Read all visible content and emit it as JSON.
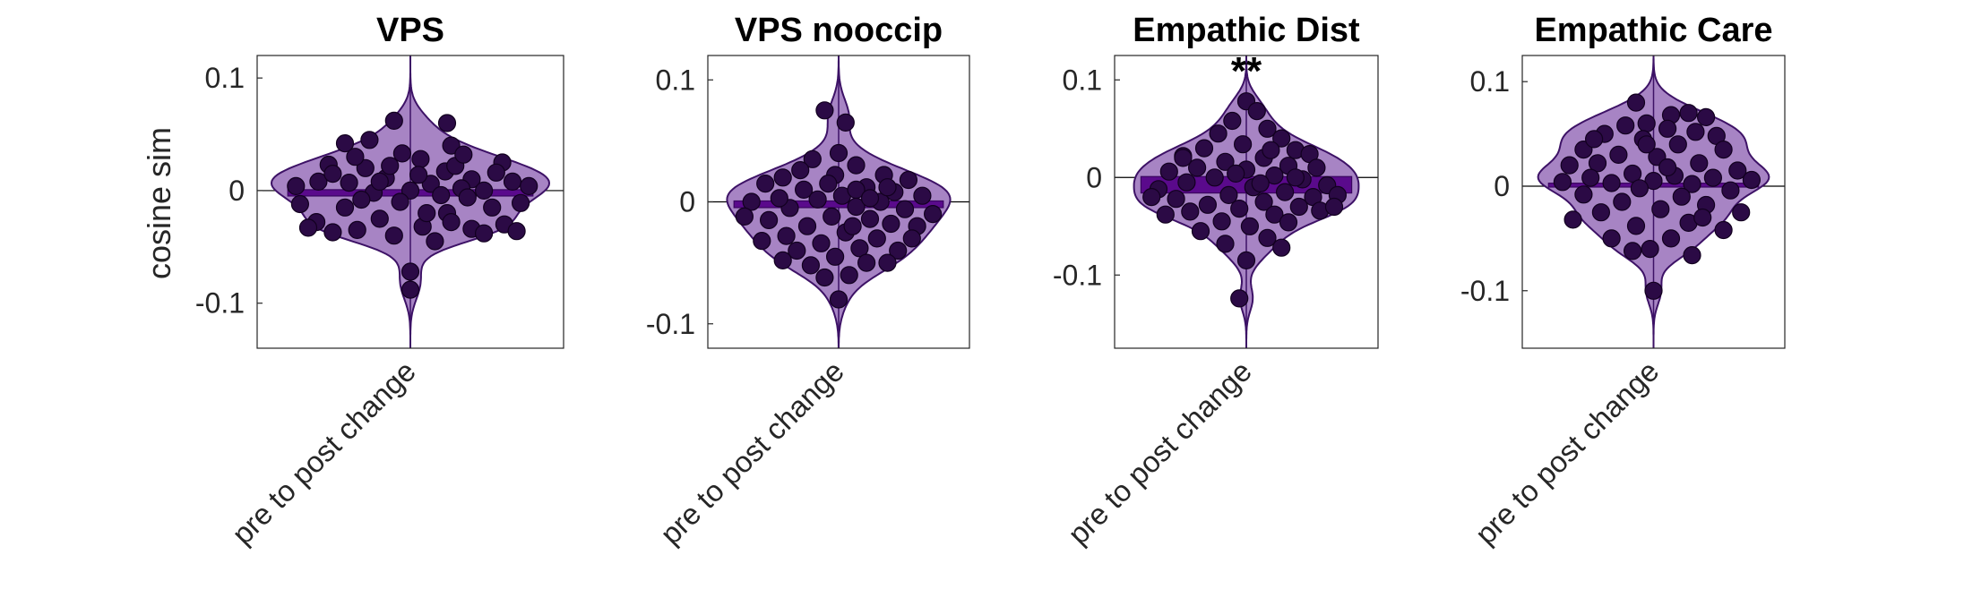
{
  "chart_data": {
    "type": "violin",
    "ylabel": "cosine sim",
    "category": "pre to post change",
    "colors": {
      "violin_fill": "#a784c4",
      "violin_edge": "#3d1266",
      "bar": "#5a0a8c",
      "points": "#2b0a45",
      "zero_line": "#000000"
    },
    "panels": [
      {
        "title": "VPS",
        "annotation": "",
        "ylim": [
          -0.14,
          0.12
        ],
        "yticks": [
          0.1,
          0,
          -0.1
        ],
        "ytick_labels": [
          "0.1",
          "0",
          "-0.1"
        ],
        "mean": -0.004,
        "points": [
          [
            -0.012,
            0.011
          ],
          [
            0.017,
            0.017
          ],
          [
            0.03,
            0.01
          ],
          [
            -0.022,
            0.02
          ],
          [
            -0.01,
            0.022
          ],
          [
            0.005,
            0.028
          ],
          [
            0.045,
            0.025
          ],
          [
            -0.04,
            0.023
          ],
          [
            -0.027,
            0.03
          ],
          [
            0.022,
            0.022
          ],
          [
            0.01,
            0.006
          ],
          [
            -0.03,
            0.007
          ],
          [
            0.036,
            0.0
          ],
          [
            -0.018,
            -0.002
          ],
          [
            0.0,
            0.0
          ],
          [
            0.025,
            0.002
          ],
          [
            -0.045,
            0.008
          ],
          [
            0.05,
            0.008
          ],
          [
            0.015,
            -0.004
          ],
          [
            -0.005,
            -0.01
          ],
          [
            0.018,
            -0.02
          ],
          [
            -0.032,
            -0.015
          ],
          [
            0.04,
            -0.015
          ],
          [
            -0.015,
            -0.025
          ],
          [
            0.006,
            -0.032
          ],
          [
            -0.026,
            -0.035
          ],
          [
            0.03,
            -0.034
          ],
          [
            -0.008,
            -0.04
          ],
          [
            0.012,
            -0.045
          ],
          [
            0.046,
            -0.03
          ],
          [
            -0.046,
            -0.028
          ],
          [
            -0.038,
            -0.037
          ],
          [
            0.036,
            -0.038
          ],
          [
            -0.02,
            0.045
          ],
          [
            0.02,
            0.04
          ],
          [
            -0.008,
            0.062
          ],
          [
            0.018,
            0.06
          ],
          [
            -0.032,
            0.042
          ],
          [
            0.0,
            -0.072
          ],
          [
            0.0,
            -0.088
          ],
          [
            -0.054,
            -0.012
          ],
          [
            0.054,
            -0.011
          ],
          [
            0.026,
            0.032
          ],
          [
            -0.004,
            0.033
          ],
          [
            -0.015,
            0.008
          ],
          [
            0.042,
            0.016
          ],
          [
            -0.038,
            0.015
          ],
          [
            0.008,
            -0.02
          ],
          [
            -0.024,
            -0.008
          ],
          [
            0.028,
            -0.006
          ],
          [
            0.058,
            0.004
          ],
          [
            -0.056,
            0.004
          ],
          [
            0.004,
            0.014
          ],
          [
            -0.05,
            -0.033
          ],
          [
            0.052,
            -0.036
          ],
          [
            0.02,
            -0.028
          ]
        ]
      },
      {
        "title": "VPS nooccip",
        "annotation": "",
        "ylim": [
          -0.12,
          0.12
        ],
        "yticks": [
          0.1,
          0,
          -0.1
        ],
        "ytick_labels": [
          "0.1",
          "0",
          "-0.1"
        ],
        "mean": -0.004,
        "points": [
          [
            -0.008,
            0.075
          ],
          [
            0.004,
            0.065
          ],
          [
            -0.015,
            0.035
          ],
          [
            0.01,
            0.03
          ],
          [
            0.026,
            0.022
          ],
          [
            -0.032,
            0.02
          ],
          [
            0.04,
            0.018
          ],
          [
            -0.002,
            0.022
          ],
          [
            0.016,
            0.012
          ],
          [
            -0.02,
            0.01
          ],
          [
            0.032,
            0.008
          ],
          [
            -0.042,
            0.015
          ],
          [
            0.002,
            0.005
          ],
          [
            -0.012,
            0.002
          ],
          [
            0.024,
            0.0
          ],
          [
            0.048,
            0.005
          ],
          [
            -0.05,
            0.0
          ],
          [
            0.01,
            -0.004
          ],
          [
            -0.028,
            -0.005
          ],
          [
            0.038,
            -0.006
          ],
          [
            -0.004,
            -0.012
          ],
          [
            0.018,
            -0.014
          ],
          [
            -0.04,
            -0.015
          ],
          [
            0.03,
            -0.018
          ],
          [
            -0.018,
            -0.02
          ],
          [
            0.004,
            -0.025
          ],
          [
            0.045,
            -0.02
          ],
          [
            -0.03,
            -0.028
          ],
          [
            0.022,
            -0.03
          ],
          [
            -0.01,
            -0.034
          ],
          [
            0.012,
            -0.038
          ],
          [
            -0.024,
            -0.04
          ],
          [
            0.034,
            -0.04
          ],
          [
            -0.002,
            -0.045
          ],
          [
            0.016,
            -0.05
          ],
          [
            -0.016,
            -0.052
          ],
          [
            0.006,
            -0.06
          ],
          [
            -0.008,
            -0.062
          ],
          [
            0.0,
            -0.08
          ],
          [
            0.01,
            0.01
          ],
          [
            -0.034,
            0.003
          ],
          [
            0.028,
            0.012
          ],
          [
            -0.022,
            0.026
          ],
          [
            0.018,
            0.003
          ],
          [
            0.054,
            -0.01
          ],
          [
            -0.054,
            -0.012
          ],
          [
            0.042,
            -0.03
          ],
          [
            -0.044,
            -0.032
          ],
          [
            0.0,
            0.04
          ],
          [
            0.008,
            -0.02
          ],
          [
            -0.006,
            0.015
          ],
          [
            0.028,
            -0.05
          ],
          [
            -0.032,
            -0.048
          ]
        ]
      },
      {
        "title": "Empathic Dist",
        "annotation": "**",
        "ylim": [
          -0.175,
          0.125
        ],
        "yticks": [
          0.1,
          0,
          -0.1
        ],
        "ytick_labels": [
          "0.1",
          "0",
          "-0.1"
        ],
        "mean": -0.015,
        "points": [
          [
            0.0,
            0.078
          ],
          [
            0.006,
            0.068
          ],
          [
            -0.008,
            0.058
          ],
          [
            0.012,
            0.05
          ],
          [
            -0.016,
            0.045
          ],
          [
            0.02,
            0.04
          ],
          [
            -0.024,
            0.03
          ],
          [
            0.028,
            0.028
          ],
          [
            -0.002,
            0.034
          ],
          [
            0.036,
            0.024
          ],
          [
            -0.036,
            0.022
          ],
          [
            0.01,
            0.02
          ],
          [
            -0.012,
            0.016
          ],
          [
            0.024,
            0.012
          ],
          [
            -0.028,
            0.01
          ],
          [
            0.04,
            0.01
          ],
          [
            0.0,
            0.008
          ],
          [
            -0.044,
            0.006
          ],
          [
            0.016,
            0.002
          ],
          [
            -0.018,
            0.0
          ],
          [
            0.032,
            -0.002
          ],
          [
            -0.034,
            -0.005
          ],
          [
            0.046,
            -0.008
          ],
          [
            0.004,
            -0.01
          ],
          [
            -0.05,
            -0.012
          ],
          [
            0.022,
            -0.015
          ],
          [
            -0.01,
            -0.018
          ],
          [
            0.038,
            -0.02
          ],
          [
            -0.04,
            -0.022
          ],
          [
            0.01,
            -0.025
          ],
          [
            -0.022,
            -0.028
          ],
          [
            0.03,
            -0.03
          ],
          [
            -0.004,
            -0.032
          ],
          [
            -0.032,
            -0.035
          ],
          [
            0.016,
            -0.038
          ],
          [
            0.042,
            -0.034
          ],
          [
            -0.046,
            -0.038
          ],
          [
            -0.014,
            -0.045
          ],
          [
            0.024,
            -0.046
          ],
          [
            0.002,
            -0.05
          ],
          [
            -0.026,
            -0.055
          ],
          [
            0.012,
            -0.062
          ],
          [
            -0.012,
            -0.068
          ],
          [
            0.02,
            -0.072
          ],
          [
            0.0,
            -0.085
          ],
          [
            -0.004,
            -0.124
          ],
          [
            0.008,
            -0.006
          ],
          [
            -0.006,
            0.004
          ],
          [
            0.052,
            -0.018
          ],
          [
            -0.054,
            -0.02
          ],
          [
            0.028,
            0.0
          ],
          [
            -0.036,
            0.02
          ],
          [
            0.014,
            0.028
          ],
          [
            0.05,
            -0.03
          ]
        ]
      },
      {
        "title": "Empathic Care",
        "annotation": "",
        "ylim": [
          -0.155,
          0.125
        ],
        "yticks": [
          0.1,
          0,
          -0.1
        ],
        "ytick_labels": [
          "0.1",
          "0",
          "-0.1"
        ],
        "mean": 0.002,
        "points": [
          [
            -0.01,
            0.08
          ],
          [
            0.01,
            0.068
          ],
          [
            0.02,
            0.07
          ],
          [
            -0.004,
            0.06
          ],
          [
            0.03,
            0.066
          ],
          [
            -0.016,
            0.058
          ],
          [
            0.008,
            0.055
          ],
          [
            -0.028,
            0.05
          ],
          [
            0.024,
            0.052
          ],
          [
            -0.006,
            0.045
          ],
          [
            0.036,
            0.048
          ],
          [
            -0.04,
            0.035
          ],
          [
            0.014,
            0.04
          ],
          [
            -0.02,
            0.03
          ],
          [
            0.04,
            0.035
          ],
          [
            0.002,
            0.028
          ],
          [
            -0.032,
            0.022
          ],
          [
            0.026,
            0.022
          ],
          [
            -0.048,
            0.02
          ],
          [
            0.048,
            0.015
          ],
          [
            -0.012,
            0.012
          ],
          [
            0.012,
            0.01
          ],
          [
            -0.036,
            0.008
          ],
          [
            0.034,
            0.008
          ],
          [
            0.0,
            0.005
          ],
          [
            -0.024,
            0.003
          ],
          [
            0.022,
            0.002
          ],
          [
            0.056,
            0.006
          ],
          [
            -0.052,
            0.004
          ],
          [
            -0.008,
            -0.002
          ],
          [
            0.044,
            -0.004
          ],
          [
            -0.04,
            -0.008
          ],
          [
            0.016,
            -0.01
          ],
          [
            -0.018,
            -0.015
          ],
          [
            0.03,
            -0.018
          ],
          [
            0.004,
            -0.022
          ],
          [
            -0.03,
            -0.025
          ],
          [
            0.05,
            -0.025
          ],
          [
            -0.046,
            -0.032
          ],
          [
            0.02,
            -0.035
          ],
          [
            -0.01,
            -0.038
          ],
          [
            0.04,
            -0.042
          ],
          [
            -0.024,
            -0.05
          ],
          [
            0.01,
            -0.05
          ],
          [
            -0.002,
            -0.06
          ],
          [
            0.022,
            -0.066
          ],
          [
            -0.012,
            -0.062
          ],
          [
            0.0,
            -0.1
          ],
          [
            0.008,
            0.018
          ],
          [
            -0.004,
            0.04
          ],
          [
            0.028,
            -0.03
          ],
          [
            -0.034,
            0.045
          ]
        ]
      }
    ]
  }
}
